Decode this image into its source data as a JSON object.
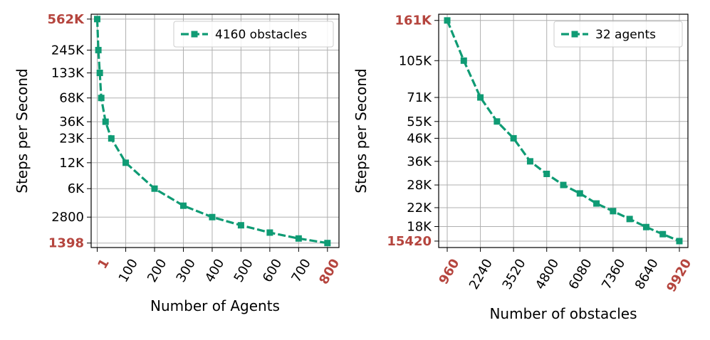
{
  "chart_data": [
    {
      "type": "line",
      "title": "",
      "xlabel": "Number of Agents",
      "ylabel": "Steps per Second",
      "yscale": "log",
      "xlim": [
        -20,
        840
      ],
      "ylim": [
        1240,
        640000
      ],
      "x_ticks": [
        {
          "value": 1,
          "label": "1",
          "highlight": true
        },
        {
          "value": 100,
          "label": "100",
          "highlight": false
        },
        {
          "value": 200,
          "label": "200",
          "highlight": false
        },
        {
          "value": 300,
          "label": "300",
          "highlight": false
        },
        {
          "value": 400,
          "label": "400",
          "highlight": false
        },
        {
          "value": 500,
          "label": "500",
          "highlight": false
        },
        {
          "value": 600,
          "label": "600",
          "highlight": false
        },
        {
          "value": 700,
          "label": "700",
          "highlight": false
        },
        {
          "value": 800,
          "label": "800",
          "highlight": true
        }
      ],
      "y_ticks": [
        {
          "value": 562000,
          "label": "562K",
          "highlight": true
        },
        {
          "value": 245000,
          "label": "245K",
          "highlight": false
        },
        {
          "value": 133000,
          "label": "133K",
          "highlight": false
        },
        {
          "value": 68000,
          "label": "68K",
          "highlight": false
        },
        {
          "value": 36000,
          "label": "36K",
          "highlight": false
        },
        {
          "value": 23000,
          "label": "23K",
          "highlight": false
        },
        {
          "value": 12000,
          "label": "12K",
          "highlight": false
        },
        {
          "value": 6000,
          "label": "6K",
          "highlight": false
        },
        {
          "value": 2800,
          "label": "2800",
          "highlight": false
        },
        {
          "value": 1398,
          "label": "1398",
          "highlight": true
        }
      ],
      "series": [
        {
          "name": "4160 obstacles",
          "color": "#0f9b74",
          "x": [
            1,
            5,
            10,
            15,
            30,
            50,
            100,
            200,
            300,
            400,
            500,
            600,
            700,
            800
          ],
          "y": [
            562000,
            245000,
            133000,
            68000,
            36000,
            23000,
            12000,
            6000,
            3800,
            2800,
            2250,
            1850,
            1580,
            1398
          ]
        }
      ],
      "legend": {
        "position": "top-right"
      }
    },
    {
      "type": "line",
      "title": "",
      "xlabel": "Number of obstacles",
      "ylabel": "Steps per Second",
      "yscale": "log",
      "xlim": [
        630,
        10250
      ],
      "ylim": [
        14400,
        172000
      ],
      "x_ticks": [
        {
          "value": 960,
          "label": "960",
          "highlight": true
        },
        {
          "value": 2240,
          "label": "2240",
          "highlight": false
        },
        {
          "value": 3520,
          "label": "3520",
          "highlight": false
        },
        {
          "value": 4800,
          "label": "4800",
          "highlight": false
        },
        {
          "value": 6080,
          "label": "6080",
          "highlight": false
        },
        {
          "value": 7360,
          "label": "7360",
          "highlight": false
        },
        {
          "value": 8640,
          "label": "8640",
          "highlight": false
        },
        {
          "value": 9920,
          "label": "9920",
          "highlight": true
        }
      ],
      "y_ticks": [
        {
          "value": 161000,
          "label": "161K",
          "highlight": true
        },
        {
          "value": 105000,
          "label": "105K",
          "highlight": false
        },
        {
          "value": 71000,
          "label": "71K",
          "highlight": false
        },
        {
          "value": 55000,
          "label": "55K",
          "highlight": false
        },
        {
          "value": 46000,
          "label": "46K",
          "highlight": false
        },
        {
          "value": 36000,
          "label": "36K",
          "highlight": false
        },
        {
          "value": 28000,
          "label": "28K",
          "highlight": false
        },
        {
          "value": 22000,
          "label": "22K",
          "highlight": false
        },
        {
          "value": 18000,
          "label": "18K",
          "highlight": false
        },
        {
          "value": 15420,
          "label": "15420",
          "highlight": true
        }
      ],
      "series": [
        {
          "name": "32 agents",
          "color": "#0f9b74",
          "x": [
            960,
            1600,
            2240,
            2880,
            3520,
            4160,
            4800,
            5440,
            6080,
            6720,
            7360,
            8000,
            8640,
            9280,
            9920
          ],
          "y": [
            161000,
            105000,
            71000,
            55000,
            46000,
            36000,
            31500,
            28000,
            25600,
            23000,
            21200,
            19500,
            17900,
            16600,
            15420
          ]
        }
      ],
      "legend": {
        "position": "top-right"
      }
    }
  ]
}
